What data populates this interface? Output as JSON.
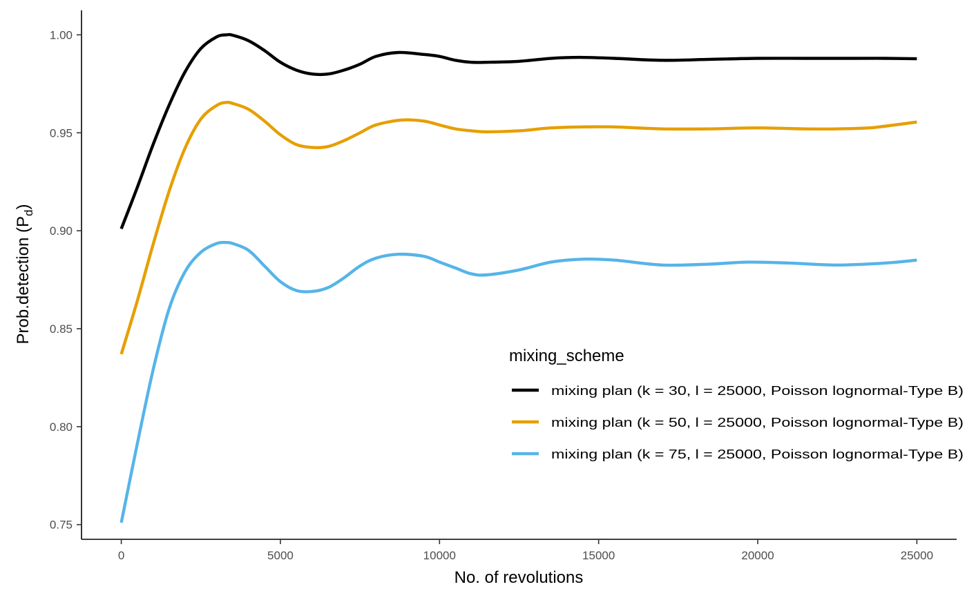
{
  "chart_data": {
    "type": "line",
    "title": "",
    "xlabel": "No. of revolutions",
    "ylabel_main": "Prob.detection (P",
    "ylabel_sub": "d",
    "ylabel_close": ")",
    "xlim": [
      -1250,
      26250
    ],
    "ylim": [
      0.7425,
      1.0125
    ],
    "xticks": [
      0,
      5000,
      10000,
      15000,
      20000,
      25000
    ],
    "xtick_labels": [
      "0",
      "5000",
      "10000",
      "15000",
      "20000",
      "25000"
    ],
    "yticks": [
      0.75,
      0.8,
      0.85,
      0.9,
      0.95,
      1.0
    ],
    "ytick_labels": [
      "0.75",
      "0.80",
      "0.85",
      "0.90",
      "0.95",
      "1.00"
    ],
    "grid": false,
    "legend": {
      "title": "mixing_scheme",
      "position": "right-center"
    },
    "series": [
      {
        "name": "mixing plan (k = 30, l = 25000, Poisson lognormal-Type B)",
        "color": "#000000",
        "x": [
          0,
          500,
          1000,
          1500,
          2000,
          2500,
          3000,
          3300,
          3500,
          4000,
          4500,
          5000,
          5500,
          6000,
          6500,
          7000,
          7500,
          8000,
          8700,
          9500,
          10000,
          10500,
          11000,
          11500,
          12500,
          13500,
          14400,
          15500,
          17000,
          18500,
          20000,
          21500,
          23000,
          24000,
          25000
        ],
        "y": [
          0.901,
          0.922,
          0.944,
          0.964,
          0.981,
          0.993,
          0.999,
          1.0,
          0.9998,
          0.997,
          0.992,
          0.986,
          0.982,
          0.98,
          0.98,
          0.982,
          0.985,
          0.989,
          0.991,
          0.99,
          0.989,
          0.987,
          0.986,
          0.986,
          0.9865,
          0.988,
          0.9885,
          0.988,
          0.987,
          0.9875,
          0.988,
          0.988,
          0.988,
          0.988,
          0.9878
        ]
      },
      {
        "name": "mixing plan (k = 50, l = 25000, Poisson lognormal-Type B)",
        "color": "#E69F00",
        "x": [
          0,
          500,
          1000,
          1500,
          2000,
          2500,
          3000,
          3300,
          3500,
          4000,
          4500,
          5000,
          5500,
          6000,
          6500,
          7000,
          7500,
          8000,
          8800,
          9500,
          10000,
          10500,
          11000,
          11500,
          12500,
          13500,
          14500,
          15500,
          17000,
          18500,
          20000,
          21500,
          22500,
          23500,
          24300,
          25000
        ],
        "y": [
          0.837,
          0.864,
          0.893,
          0.92,
          0.942,
          0.957,
          0.964,
          0.9655,
          0.965,
          0.962,
          0.956,
          0.949,
          0.944,
          0.9425,
          0.943,
          0.946,
          0.95,
          0.954,
          0.9565,
          0.956,
          0.954,
          0.952,
          0.951,
          0.9505,
          0.951,
          0.9525,
          0.953,
          0.953,
          0.952,
          0.952,
          0.9525,
          0.952,
          0.952,
          0.9525,
          0.954,
          0.9555
        ]
      },
      {
        "name": "mixing plan (k = 75, l = 25000, Poisson lognormal-Type B)",
        "color": "#56B4E9",
        "x": [
          0,
          500,
          1000,
          1500,
          2000,
          2500,
          3000,
          3300,
          3500,
          4000,
          4500,
          5000,
          5500,
          6000,
          6500,
          7000,
          7500,
          8000,
          8700,
          9500,
          10000,
          10500,
          11000,
          11500,
          12500,
          13500,
          14500,
          15500,
          17000,
          18500,
          19700,
          21000,
          22500,
          24000,
          25000
        ],
        "y": [
          0.751,
          0.791,
          0.829,
          0.86,
          0.879,
          0.889,
          0.8935,
          0.894,
          0.8935,
          0.89,
          0.882,
          0.874,
          0.8695,
          0.869,
          0.871,
          0.876,
          0.882,
          0.886,
          0.888,
          0.887,
          0.884,
          0.881,
          0.878,
          0.8775,
          0.88,
          0.884,
          0.8855,
          0.885,
          0.8825,
          0.883,
          0.884,
          0.8835,
          0.8825,
          0.8835,
          0.885
        ]
      }
    ]
  }
}
